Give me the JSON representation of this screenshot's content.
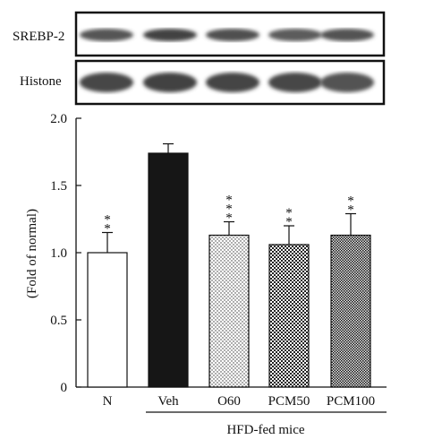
{
  "blots": {
    "rows": [
      {
        "label": "SREBP-2",
        "intensity": [
          0.78,
          0.95,
          0.82,
          0.72,
          0.8
        ]
      },
      {
        "label": "Histone",
        "intensity": [
          0.9,
          0.95,
          0.92,
          0.9,
          0.8
        ]
      }
    ]
  },
  "chart_data": {
    "type": "bar",
    "ylabel": "(Fold of normal)",
    "ylim": [
      0,
      2.0
    ],
    "yticks": [
      "0",
      "0.5",
      "1.0",
      "1.5",
      "2.0"
    ],
    "categories": [
      "N",
      "Veh",
      "O60",
      "PCM50",
      "PCM100"
    ],
    "values": [
      1.0,
      1.74,
      1.13,
      1.06,
      1.13
    ],
    "errors": [
      0.15,
      0.07,
      0.1,
      0.14,
      0.16
    ],
    "significance": [
      "**",
      "",
      "***",
      "**",
      "**"
    ],
    "fills": [
      "white",
      "solid",
      "dots",
      "checker",
      "checker-dense"
    ],
    "group_label": "HFD-fed mice"
  }
}
